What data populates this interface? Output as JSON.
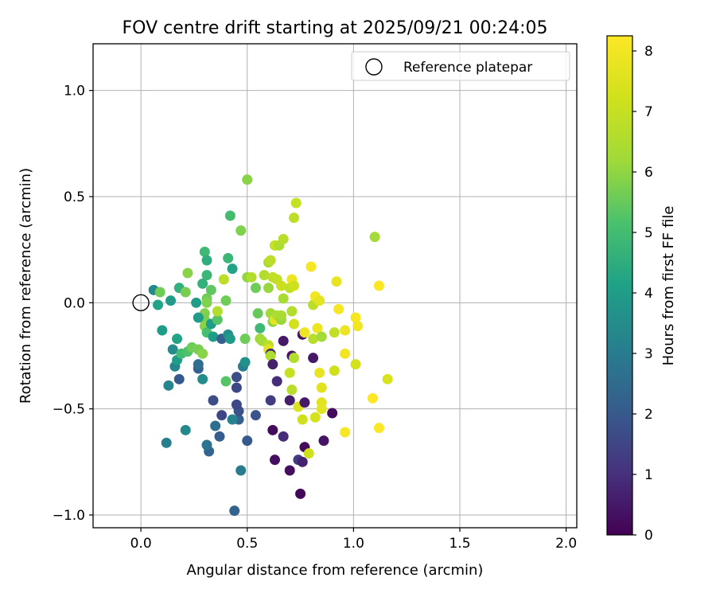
{
  "chart_data": {
    "type": "scatter",
    "title": "FOV centre drift starting at 2025/09/21 00:24:05",
    "xlabel": "Angular distance from reference (arcmin)",
    "ylabel": "Rotation from reference (arcmin)",
    "xlim": [
      -0.225,
      2.05
    ],
    "ylim": [
      -1.06,
      1.22
    ],
    "xticks": [
      "0.0",
      "0.5",
      "1.0",
      "1.5",
      "2.0"
    ],
    "xtick_values": [
      0,
      0.5,
      1.0,
      1.5,
      2.0
    ],
    "yticks": [
      "−1.0",
      "−0.5",
      "0.0",
      "0.5",
      "1.0"
    ],
    "ytick_values": [
      -1.0,
      -0.5,
      0.0,
      0.5,
      1.0
    ],
    "grid": true,
    "legend": {
      "label": "Reference platepar",
      "position": "top-right"
    },
    "reference_point": {
      "x": 0.0,
      "y": 0.0
    },
    "colorbar": {
      "label": "Hours from first FF file",
      "min": 0,
      "max": 8.25,
      "ticks": [
        "0",
        "1",
        "2",
        "3",
        "4",
        "5",
        "6",
        "7",
        "8"
      ],
      "tick_values": [
        0,
        1,
        2,
        3,
        4,
        5,
        6,
        7,
        8
      ],
      "colormap": "viridis"
    },
    "points": [
      {
        "x": 0.44,
        "y": -0.98,
        "hours": 2.3
      },
      {
        "x": 0.32,
        "y": -0.7,
        "hours": 2.3
      },
      {
        "x": 0.46,
        "y": -0.55,
        "hours": 2.2
      },
      {
        "x": 0.35,
        "y": -0.58,
        "hours": 2.6
      },
      {
        "x": 0.31,
        "y": -0.67,
        "hours": 2.7
      },
      {
        "x": 0.37,
        "y": -0.63,
        "hours": 2.1
      },
      {
        "x": 0.47,
        "y": -0.79,
        "hours": 3.0
      },
      {
        "x": 0.12,
        "y": -0.66,
        "hours": 3.1
      },
      {
        "x": 0.21,
        "y": -0.6,
        "hours": 3.4
      },
      {
        "x": 0.5,
        "y": -0.65,
        "hours": 2.0
      },
      {
        "x": 0.43,
        "y": -0.55,
        "hours": 3.2
      },
      {
        "x": 0.38,
        "y": -0.53,
        "hours": 1.5
      },
      {
        "x": 0.46,
        "y": -0.51,
        "hours": 1.8
      },
      {
        "x": 0.45,
        "y": -0.48,
        "hours": 1.6
      },
      {
        "x": 0.34,
        "y": -0.46,
        "hours": 1.7
      },
      {
        "x": 0.54,
        "y": -0.53,
        "hours": 1.9
      },
      {
        "x": 0.13,
        "y": -0.39,
        "hours": 3.3
      },
      {
        "x": 0.18,
        "y": -0.36,
        "hours": 2.0
      },
      {
        "x": 0.27,
        "y": -0.31,
        "hours": 2.2
      },
      {
        "x": 0.27,
        "y": -0.29,
        "hours": 2.6
      },
      {
        "x": 0.29,
        "y": -0.36,
        "hours": 3.5
      },
      {
        "x": 0.45,
        "y": -0.4,
        "hours": 1.6
      },
      {
        "x": 0.45,
        "y": -0.35,
        "hours": 1.7
      },
      {
        "x": 0.48,
        "y": -0.3,
        "hours": 3.1
      },
      {
        "x": 0.49,
        "y": -0.28,
        "hours": 3.6
      },
      {
        "x": 0.4,
        "y": -0.37,
        "hours": 5.3
      },
      {
        "x": 0.16,
        "y": -0.3,
        "hours": 3.3
      },
      {
        "x": 0.17,
        "y": -0.27,
        "hours": 4.0
      },
      {
        "x": 0.15,
        "y": -0.22,
        "hours": 3.5
      },
      {
        "x": 0.19,
        "y": -0.24,
        "hours": 5.0
      },
      {
        "x": 0.22,
        "y": -0.23,
        "hours": 5.2
      },
      {
        "x": 0.24,
        "y": -0.21,
        "hours": 5.6
      },
      {
        "x": 0.27,
        "y": -0.22,
        "hours": 5.7
      },
      {
        "x": 0.29,
        "y": -0.24,
        "hours": 5.9
      },
      {
        "x": 0.17,
        "y": -0.17,
        "hours": 4.2
      },
      {
        "x": 0.1,
        "y": -0.13,
        "hours": 4.0
      },
      {
        "x": 0.08,
        "y": -0.01,
        "hours": 4.2
      },
      {
        "x": 0.14,
        "y": 0.01,
        "hours": 3.9
      },
      {
        "x": 0.06,
        "y": 0.06,
        "hours": 3.4
      },
      {
        "x": 0.09,
        "y": 0.05,
        "hours": 5.6
      },
      {
        "x": 0.18,
        "y": 0.07,
        "hours": 4.6
      },
      {
        "x": 0.21,
        "y": 0.05,
        "hours": 5.7
      },
      {
        "x": 0.26,
        "y": 0.0,
        "hours": 4.0
      },
      {
        "x": 0.29,
        "y": 0.09,
        "hours": 4.6
      },
      {
        "x": 0.31,
        "y": 0.13,
        "hours": 4.8
      },
      {
        "x": 0.33,
        "y": 0.06,
        "hours": 5.4
      },
      {
        "x": 0.31,
        "y": 0.02,
        "hours": 5.6
      },
      {
        "x": 0.31,
        "y": 0.0,
        "hours": 5.8
      },
      {
        "x": 0.3,
        "y": -0.05,
        "hours": 5.8
      },
      {
        "x": 0.3,
        "y": -0.08,
        "hours": 5.7
      },
      {
        "x": 0.3,
        "y": -0.11,
        "hours": 5.9
      },
      {
        "x": 0.31,
        "y": -0.14,
        "hours": 5.1
      },
      {
        "x": 0.33,
        "y": -0.1,
        "hours": 4.0
      },
      {
        "x": 0.27,
        "y": -0.07,
        "hours": 4.0
      },
      {
        "x": 0.36,
        "y": -0.08,
        "hours": 5.3
      },
      {
        "x": 0.36,
        "y": -0.04,
        "hours": 6.6
      },
      {
        "x": 0.34,
        "y": -0.16,
        "hours": 4.0
      },
      {
        "x": 0.38,
        "y": -0.17,
        "hours": 2.2
      },
      {
        "x": 0.41,
        "y": -0.15,
        "hours": 3.6
      },
      {
        "x": 0.42,
        "y": -0.17,
        "hours": 3.9
      },
      {
        "x": 0.4,
        "y": 0.01,
        "hours": 5.6
      },
      {
        "x": 0.39,
        "y": 0.11,
        "hours": 6.8
      },
      {
        "x": 0.22,
        "y": 0.14,
        "hours": 5.9
      },
      {
        "x": 0.3,
        "y": 0.24,
        "hours": 4.9
      },
      {
        "x": 0.31,
        "y": 0.2,
        "hours": 4.5
      },
      {
        "x": 0.43,
        "y": 0.16,
        "hours": 4.2
      },
      {
        "x": 0.41,
        "y": 0.21,
        "hours": 4.8
      },
      {
        "x": 0.42,
        "y": 0.41,
        "hours": 5.0
      },
      {
        "x": 0.47,
        "y": 0.34,
        "hours": 5.8
      },
      {
        "x": 0.5,
        "y": 0.58,
        "hours": 5.9
      },
      {
        "x": 0.5,
        "y": 0.12,
        "hours": 6.0
      },
      {
        "x": 0.52,
        "y": 0.12,
        "hours": 6.6
      },
      {
        "x": 0.54,
        "y": 0.07,
        "hours": 5.6
      },
      {
        "x": 0.49,
        "y": -0.17,
        "hours": 5.6
      },
      {
        "x": 0.55,
        "y": -0.05,
        "hours": 5.5
      },
      {
        "x": 0.56,
        "y": -0.12,
        "hours": 4.9
      },
      {
        "x": 0.56,
        "y": -0.17,
        "hours": 6.2
      },
      {
        "x": 0.57,
        "y": -0.18,
        "hours": 6.3
      },
      {
        "x": 0.58,
        "y": 0.13,
        "hours": 6.6
      },
      {
        "x": 0.6,
        "y": 0.07,
        "hours": 6.1
      },
      {
        "x": 0.6,
        "y": 0.19,
        "hours": 6.4
      },
      {
        "x": 0.61,
        "y": 0.2,
        "hours": 6.8
      },
      {
        "x": 0.62,
        "y": 0.12,
        "hours": 6.9
      },
      {
        "x": 0.63,
        "y": 0.27,
        "hours": 6.6
      },
      {
        "x": 0.63,
        "y": 0.27,
        "hours": 7.0
      },
      {
        "x": 0.64,
        "y": 0.11,
        "hours": 6.9
      },
      {
        "x": 0.65,
        "y": 0.27,
        "hours": 6.5
      },
      {
        "x": 0.66,
        "y": 0.08,
        "hours": 7.1
      },
      {
        "x": 0.67,
        "y": 0.3,
        "hours": 6.7
      },
      {
        "x": 0.67,
        "y": 0.02,
        "hours": 6.4
      },
      {
        "x": 0.7,
        "y": 0.07,
        "hours": 6.9
      },
      {
        "x": 0.71,
        "y": 0.11,
        "hours": 7.9
      },
      {
        "x": 0.72,
        "y": 0.08,
        "hours": 7.2
      },
      {
        "x": 0.72,
        "y": 0.4,
        "hours": 6.8
      },
      {
        "x": 0.73,
        "y": 0.47,
        "hours": 7.0
      },
      {
        "x": 0.61,
        "y": -0.05,
        "hours": 6.2
      },
      {
        "x": 0.62,
        "y": -0.09,
        "hours": 6.0
      },
      {
        "x": 0.63,
        "y": -0.08,
        "hours": 7.8
      },
      {
        "x": 0.64,
        "y": -0.06,
        "hours": 6.5
      },
      {
        "x": 0.66,
        "y": -0.08,
        "hours": 6.1
      },
      {
        "x": 0.66,
        "y": -0.06,
        "hours": 6.4
      },
      {
        "x": 0.71,
        "y": -0.04,
        "hours": 6.6
      },
      {
        "x": 0.72,
        "y": -0.1,
        "hours": 7.3
      },
      {
        "x": 0.6,
        "y": -0.2,
        "hours": 6.8
      },
      {
        "x": 0.6,
        "y": -0.22,
        "hours": 7.6
      },
      {
        "x": 0.61,
        "y": -0.24,
        "hours": 0.8
      },
      {
        "x": 0.61,
        "y": -0.25,
        "hours": 6.5
      },
      {
        "x": 0.62,
        "y": -0.29,
        "hours": 0.6
      },
      {
        "x": 0.61,
        "y": -0.46,
        "hours": 1.3
      },
      {
        "x": 0.62,
        "y": -0.6,
        "hours": 0.2
      },
      {
        "x": 0.63,
        "y": -0.74,
        "hours": 0.3
      },
      {
        "x": 0.64,
        "y": -0.37,
        "hours": 0.9
      },
      {
        "x": 0.67,
        "y": -0.18,
        "hours": 0.5
      },
      {
        "x": 0.67,
        "y": -0.63,
        "hours": 0.9
      },
      {
        "x": 0.7,
        "y": -0.79,
        "hours": 0.3
      },
      {
        "x": 0.7,
        "y": -0.46,
        "hours": 0.6
      },
      {
        "x": 0.7,
        "y": -0.33,
        "hours": 7.0
      },
      {
        "x": 0.71,
        "y": -0.25,
        "hours": 0.4
      },
      {
        "x": 0.71,
        "y": -0.41,
        "hours": 6.7
      },
      {
        "x": 0.72,
        "y": -0.26,
        "hours": 6.6
      },
      {
        "x": 0.74,
        "y": -0.49,
        "hours": 7.5
      },
      {
        "x": 0.74,
        "y": -0.74,
        "hours": 1.3
      },
      {
        "x": 0.75,
        "y": -0.9,
        "hours": 0.1
      },
      {
        "x": 0.76,
        "y": -0.75,
        "hours": 0.7
      },
      {
        "x": 0.76,
        "y": -0.55,
        "hours": 7.2
      },
      {
        "x": 0.76,
        "y": -0.15,
        "hours": 0.4
      },
      {
        "x": 0.77,
        "y": -0.47,
        "hours": 0.5
      },
      {
        "x": 0.77,
        "y": -0.68,
        "hours": 0.2
      },
      {
        "x": 0.77,
        "y": -0.14,
        "hours": 7.9
      },
      {
        "x": 0.79,
        "y": -0.71,
        "hours": 7.2
      },
      {
        "x": 0.8,
        "y": 0.17,
        "hours": 8.1
      },
      {
        "x": 0.81,
        "y": -0.26,
        "hours": 0.5
      },
      {
        "x": 0.81,
        "y": -0.17,
        "hours": 6.7
      },
      {
        "x": 0.81,
        "y": -0.01,
        "hours": 6.8
      },
      {
        "x": 0.82,
        "y": 0.03,
        "hours": 8.0
      },
      {
        "x": 0.82,
        "y": -0.54,
        "hours": 7.3
      },
      {
        "x": 0.83,
        "y": -0.12,
        "hours": 7.9
      },
      {
        "x": 0.84,
        "y": 0.01,
        "hours": 7.7
      },
      {
        "x": 0.84,
        "y": -0.33,
        "hours": 7.8
      },
      {
        "x": 0.85,
        "y": -0.4,
        "hours": 7.6
      },
      {
        "x": 0.85,
        "y": -0.47,
        "hours": 7.6
      },
      {
        "x": 0.85,
        "y": -0.5,
        "hours": 7.7
      },
      {
        "x": 0.85,
        "y": -0.16,
        "hours": 6.3
      },
      {
        "x": 0.86,
        "y": -0.65,
        "hours": 0.4
      },
      {
        "x": 0.9,
        "y": -0.52,
        "hours": 0.2
      },
      {
        "x": 0.91,
        "y": -0.14,
        "hours": 6.9
      },
      {
        "x": 0.91,
        "y": -0.32,
        "hours": 7.2
      },
      {
        "x": 0.92,
        "y": 0.1,
        "hours": 7.8
      },
      {
        "x": 0.93,
        "y": -0.03,
        "hours": 8.1
      },
      {
        "x": 0.96,
        "y": -0.13,
        "hours": 7.9
      },
      {
        "x": 0.96,
        "y": -0.24,
        "hours": 8.0
      },
      {
        "x": 0.96,
        "y": -0.61,
        "hours": 8.1
      },
      {
        "x": 1.01,
        "y": -0.29,
        "hours": 7.3
      },
      {
        "x": 1.01,
        "y": -0.07,
        "hours": 8.1
      },
      {
        "x": 1.02,
        "y": -0.11,
        "hours": 8.0
      },
      {
        "x": 1.09,
        "y": -0.45,
        "hours": 8.2
      },
      {
        "x": 1.1,
        "y": 0.31,
        "hours": 6.3
      },
      {
        "x": 1.12,
        "y": 0.08,
        "hours": 8.2
      },
      {
        "x": 1.12,
        "y": -0.59,
        "hours": 8.2
      },
      {
        "x": 1.16,
        "y": -0.36,
        "hours": 7.4
      }
    ]
  }
}
